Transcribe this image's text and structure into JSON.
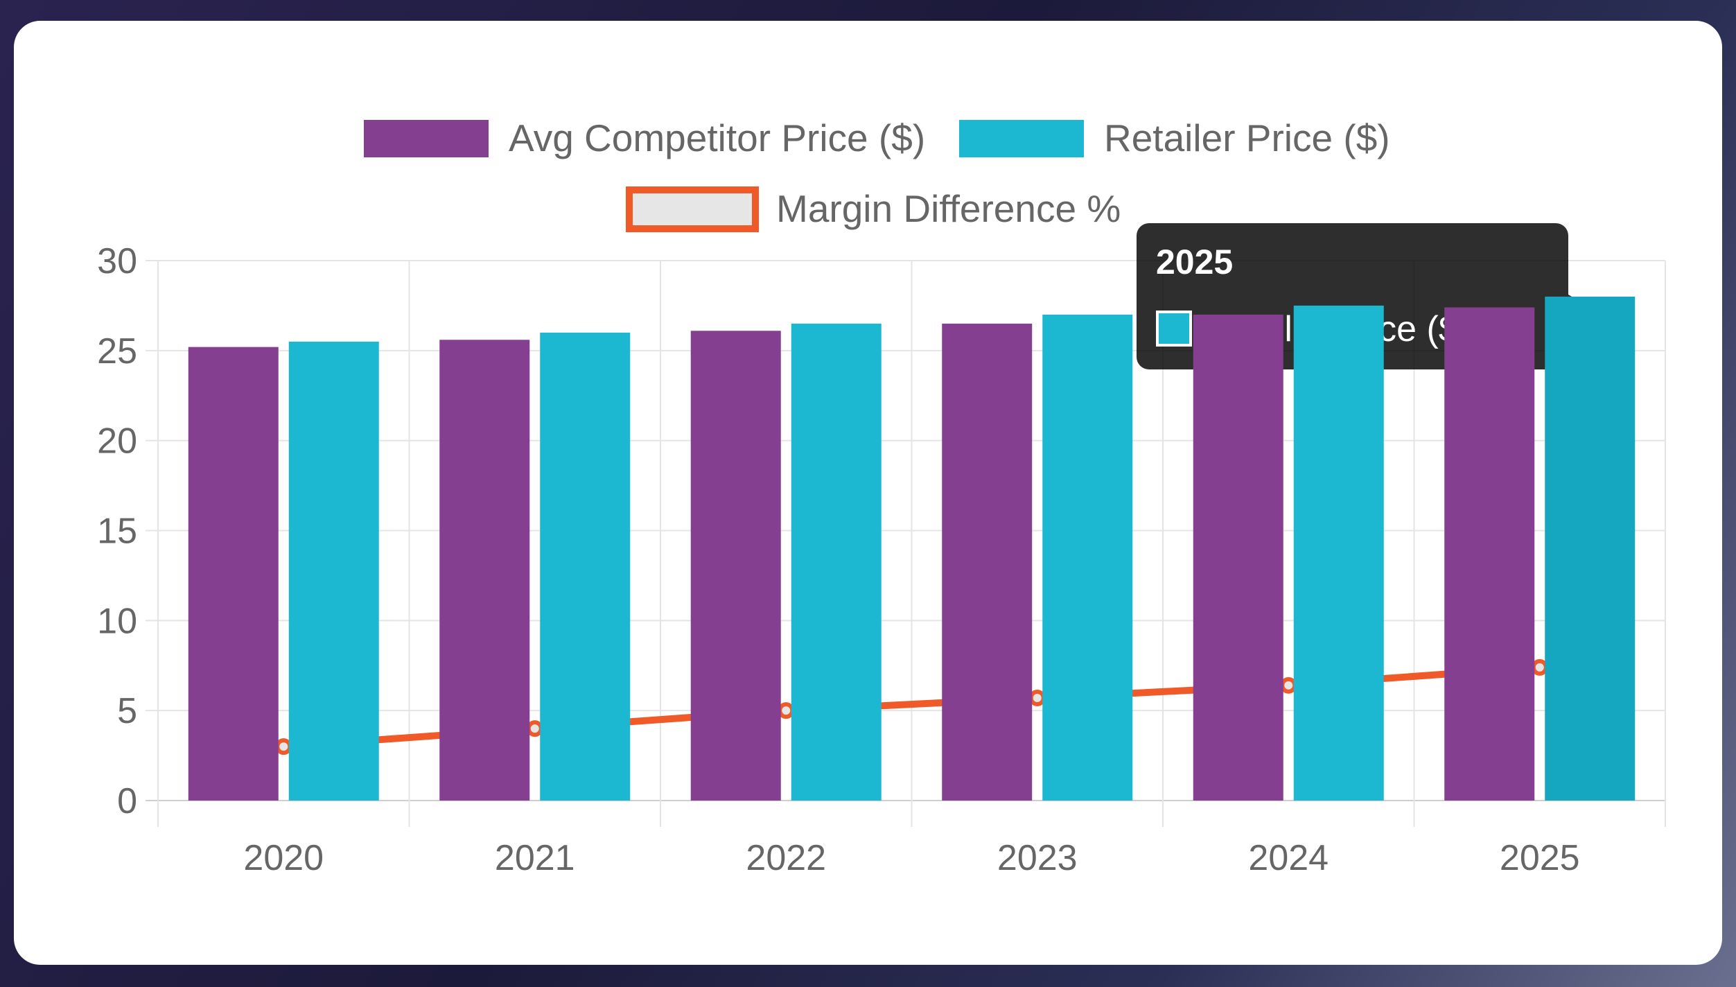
{
  "chart_data": {
    "type": "bar",
    "categories": [
      "2020",
      "2021",
      "2022",
      "2023",
      "2024",
      "2025"
    ],
    "series": [
      {
        "name": "Avg Competitor Price ($)",
        "type": "bar",
        "values": [
          25.2,
          25.6,
          26.1,
          26.5,
          27.0,
          27.4
        ],
        "color": "#843f90"
      },
      {
        "name": "Retailer Price ($)",
        "type": "bar",
        "values": [
          25.5,
          26.0,
          26.5,
          27.0,
          27.5,
          28.0
        ],
        "color": "#1cb8d1"
      },
      {
        "name": "Margin Difference %",
        "type": "line",
        "values": [
          3.0,
          4.0,
          5.0,
          5.7,
          6.4,
          7.4
        ],
        "color": "#f05a28"
      }
    ],
    "ylim": [
      0,
      30
    ],
    "yticks": [
      0,
      5,
      10,
      15,
      20,
      25,
      30
    ],
    "grid": true,
    "legend": "top-center",
    "tooltip": {
      "title": "2025",
      "label": "Retailer Price ($): 28",
      "color": "#1cb8d1"
    }
  }
}
